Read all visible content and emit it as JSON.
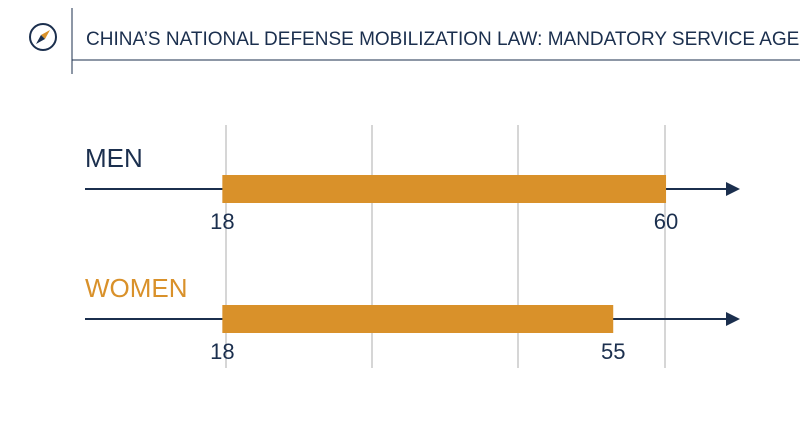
{
  "chart_data": {
    "type": "range",
    "title": "CHINA’S NATIONAL DEFENSE MOBILIZATION LAW: MANDATORY SERVICE AGES",
    "categories": [
      "MEN",
      "WOMEN"
    ],
    "category_colors": [
      "#1b2f4e",
      "#d9912a"
    ],
    "start": [
      18,
      18
    ],
    "end": [
      60,
      55
    ],
    "color": "#d9912a",
    "axis_color": "#1b2f4e",
    "xlim": [
      5,
      67
    ]
  }
}
